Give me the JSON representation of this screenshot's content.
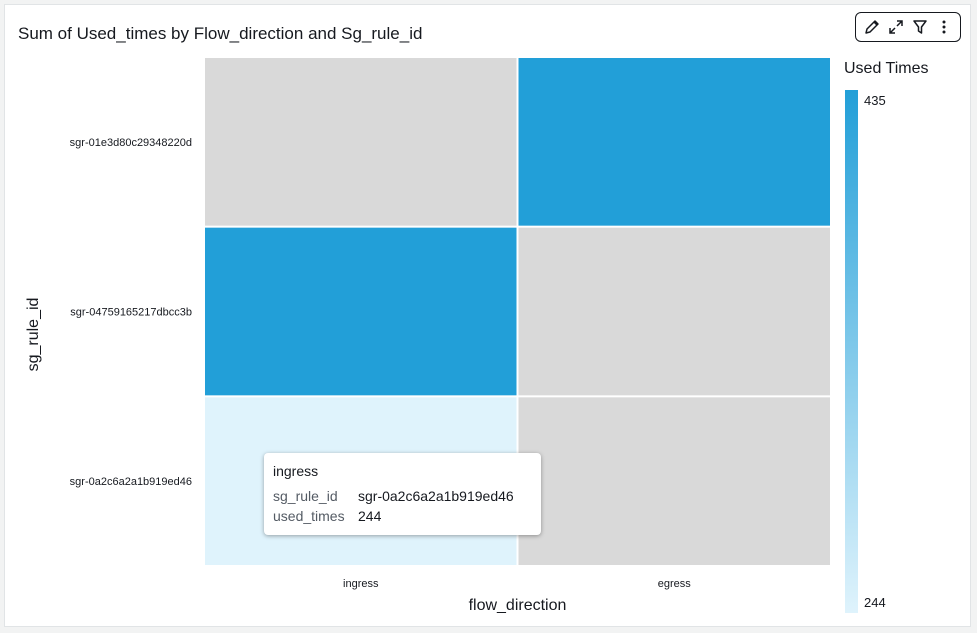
{
  "chart_data": {
    "type": "heatmap",
    "title": "Sum of Used_times by Flow_direction and Sg_rule_id",
    "xlabel": "flow_direction",
    "ylabel": "sg_rule_id",
    "x_categories": [
      "ingress",
      "egress"
    ],
    "y_categories": [
      "sgr-01e3d80c29348220d",
      "sgr-04759165217dbcc3b",
      "sgr-0a2c6a2a1b919ed46"
    ],
    "cells": [
      {
        "x": "egress",
        "y": "sgr-01e3d80c29348220d",
        "value": 435
      },
      {
        "x": "ingress",
        "y": "sgr-04759165217dbcc3b",
        "value": 435
      },
      {
        "x": "ingress",
        "y": "sgr-0a2c6a2a1b919ed46",
        "value": 244
      }
    ],
    "legend": {
      "title": "Used Times",
      "min": 244,
      "max": 435,
      "placement": "right"
    },
    "colors": {
      "low": "#dff3fc",
      "high": "#229fd8",
      "empty": "#d9d9d9"
    }
  },
  "toolbar": {
    "icons": [
      "pencil-icon",
      "expand-icon",
      "filter-icon",
      "more-vertical-icon"
    ]
  },
  "tooltip": {
    "title": "ingress",
    "rows": [
      {
        "key": "sg_rule_id",
        "value": "sgr-0a2c6a2a1b919ed46"
      },
      {
        "key": "used_times",
        "value": "244"
      }
    ]
  }
}
